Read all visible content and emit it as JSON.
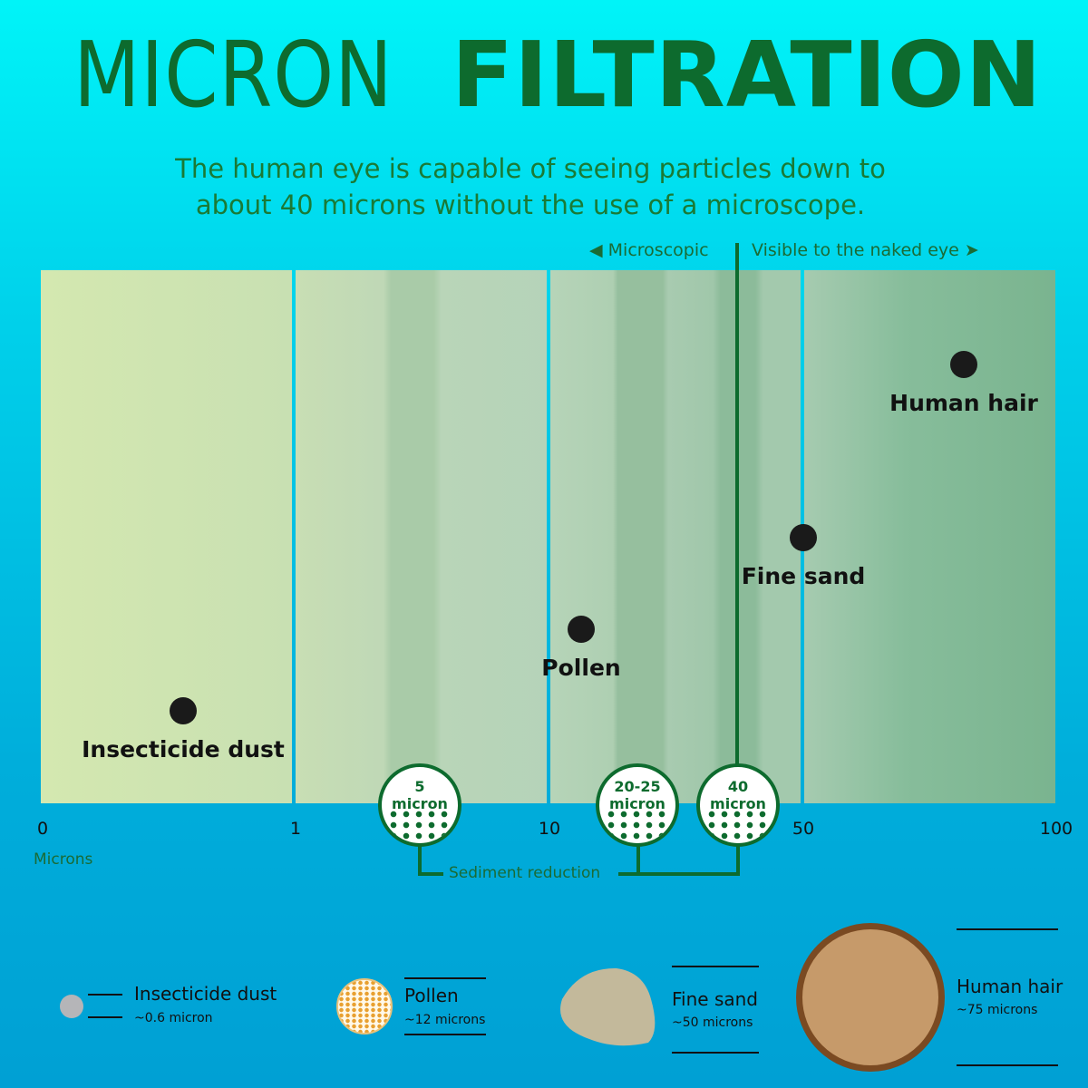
{
  "title": {
    "light": "MICRON",
    "bold": "FILTRATION"
  },
  "subtitle": [
    "The human eye is capable of seeing particles down to",
    "about 40 microns without the use of a microscope."
  ],
  "regions": {
    "left": "Microscopic",
    "right": "Visible to the naked eye"
  },
  "colors": {
    "title": "#0d6b2e",
    "accent": "#0d6b2e",
    "background_top": "#00f4f8",
    "background_bottom": "#00a0d4"
  },
  "axis": {
    "scale": "log",
    "ticks": [
      "0",
      "1",
      "10",
      "50",
      "100"
    ],
    "unit_label": "Microns"
  },
  "particles": [
    {
      "name": "Insecticide dust",
      "size_microns": 0.6,
      "size_label": "~0.6 micron"
    },
    {
      "name": "Pollen",
      "size_microns": 12,
      "size_label": "~12 microns"
    },
    {
      "name": "Fine sand",
      "size_microns": 50,
      "size_label": "~50 microns"
    },
    {
      "name": "Human hair",
      "size_microns": 75,
      "size_label": "~75 microns"
    }
  ],
  "filters": [
    {
      "value": "5",
      "unit": "micron"
    },
    {
      "value": "20-25",
      "unit": "micron"
    },
    {
      "value": "40",
      "unit": "micron"
    }
  ],
  "sediment_label": "Sediment reduction"
}
